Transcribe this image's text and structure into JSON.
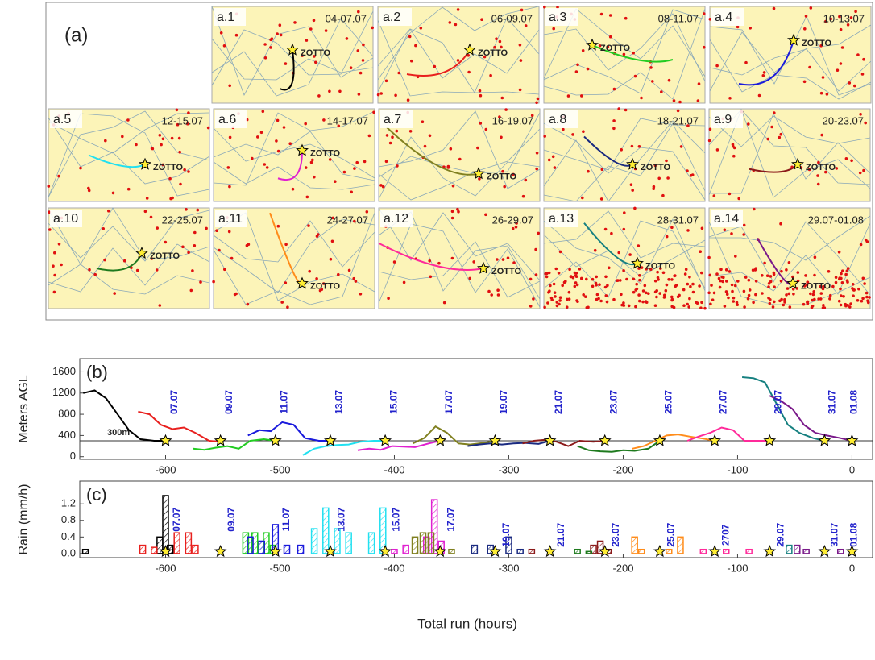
{
  "panel_a": {
    "label": "(a)",
    "station": "ZOTTO",
    "maps": [
      {
        "id": "a.1",
        "dates": "04-07.07"
      },
      {
        "id": "a.2",
        "dates": "06-09.07"
      },
      {
        "id": "a.3",
        "dates": "08-11.07"
      },
      {
        "id": "a.4",
        "dates": "10-13.07"
      },
      {
        "id": "a.5",
        "dates": "12-15.07"
      },
      {
        "id": "a.6",
        "dates": "14-17.07"
      },
      {
        "id": "a.7",
        "dates": "16-19.07"
      },
      {
        "id": "a.8",
        "dates": "18-21.07"
      },
      {
        "id": "a.9",
        "dates": "20-23.07"
      },
      {
        "id": "a.10",
        "dates": "22-25.07"
      },
      {
        "id": "a.11",
        "dates": "24-27.07"
      },
      {
        "id": "a.12",
        "dates": "26-29.07"
      },
      {
        "id": "a.13",
        "dates": "28-31.07"
      },
      {
        "id": "a.14",
        "dates": "29.07-01.08"
      }
    ]
  },
  "x_label": "Total run (hours)",
  "chart_data": [
    {
      "type": "line",
      "panel_label": "(b)",
      "y_label": "Meters AGL",
      "xlim": [
        -675,
        18
      ],
      "ylim": [
        -50,
        1850
      ],
      "xticks": [
        -600,
        -500,
        -400,
        -300,
        -200,
        -100,
        0
      ],
      "yticks": [
        0,
        400,
        800,
        1200,
        1600
      ],
      "reference": {
        "value": 300,
        "label": "300m"
      },
      "stars": {
        "x": [
          -600,
          -552,
          -504,
          -456,
          -408,
          -360,
          -312,
          -264,
          -216,
          -168,
          -120,
          -72,
          -24,
          0
        ],
        "y": 300
      },
      "date_labels": [
        {
          "x": -592,
          "y": 1030,
          "label": "07.07"
        },
        {
          "x": -544,
          "y": 1030,
          "label": "09.07"
        },
        {
          "x": -496,
          "y": 1030,
          "label": "11.07"
        },
        {
          "x": -448,
          "y": 1030,
          "label": "13.07"
        },
        {
          "x": -400,
          "y": 1030,
          "label": "15.07"
        },
        {
          "x": -352,
          "y": 1030,
          "label": "17.07"
        },
        {
          "x": -304,
          "y": 1030,
          "label": "19.07"
        },
        {
          "x": -256,
          "y": 1030,
          "label": "21.07"
        },
        {
          "x": -208,
          "y": 1030,
          "label": "23.07"
        },
        {
          "x": -160,
          "y": 1030,
          "label": "25.07"
        },
        {
          "x": -112,
          "y": 1030,
          "label": "27.07"
        },
        {
          "x": -64,
          "y": 1030,
          "label": "29.07"
        },
        {
          "x": -17,
          "y": 1030,
          "label": "31.07"
        },
        {
          "x": 2,
          "y": 1030,
          "label": "01.08"
        }
      ],
      "series": [
        {
          "color": "#000000",
          "x": [
            -672,
            -662,
            -652,
            -642,
            -632,
            -622,
            -610,
            -600
          ],
          "values": [
            1200,
            1250,
            1100,
            800,
            500,
            330,
            300,
            300
          ]
        },
        {
          "color": "#e8201e",
          "x": [
            -624,
            -614,
            -604,
            -594,
            -584,
            -574,
            -562,
            -552
          ],
          "values": [
            850,
            800,
            600,
            520,
            550,
            450,
            300,
            280
          ]
        },
        {
          "color": "#22cc22",
          "x": [
            -576,
            -566,
            -556,
            -546,
            -536,
            -526,
            -514,
            -504
          ],
          "values": [
            150,
            130,
            170,
            200,
            150,
            300,
            330,
            300
          ]
        },
        {
          "color": "#1a1adc",
          "x": [
            -528,
            -518,
            -508,
            -498,
            -488,
            -478,
            -466,
            -456
          ],
          "values": [
            400,
            500,
            480,
            650,
            600,
            350,
            300,
            300
          ]
        },
        {
          "color": "#22e0f0",
          "x": [
            -480,
            -470,
            -460,
            -450,
            -440,
            -430,
            -418,
            -408
          ],
          "values": [
            30,
            150,
            200,
            220,
            230,
            280,
            300,
            300
          ]
        },
        {
          "color": "#e020d0",
          "x": [
            -432,
            -422,
            -412,
            -402,
            -392,
            -382,
            -370,
            -360
          ],
          "values": [
            120,
            150,
            130,
            200,
            190,
            180,
            250,
            300
          ]
        },
        {
          "color": "#808020",
          "x": [
            -384,
            -374,
            -364,
            -354,
            -344,
            -334,
            -322,
            -312
          ],
          "values": [
            250,
            350,
            570,
            450,
            250,
            230,
            260,
            300
          ]
        },
        {
          "color": "#1a2a80",
          "x": [
            -336,
            -326,
            -316,
            -306,
            -296,
            -286,
            -274,
            -264
          ],
          "values": [
            200,
            230,
            250,
            230,
            250,
            260,
            240,
            300
          ]
        },
        {
          "color": "#8b1a1a",
          "x": [
            -288,
            -278,
            -268,
            -258,
            -248,
            -238,
            -226,
            -216
          ],
          "values": [
            250,
            300,
            320,
            280,
            200,
            300,
            280,
            300
          ]
        },
        {
          "color": "#1e7a1e",
          "x": [
            -240,
            -230,
            -220,
            -210,
            -200,
            -190,
            -178,
            -168
          ],
          "values": [
            200,
            120,
            100,
            90,
            120,
            110,
            150,
            300
          ]
        },
        {
          "color": "#ff8c1a",
          "x": [
            -192,
            -182,
            -172,
            -162,
            -152,
            -142,
            -130,
            -120
          ],
          "values": [
            150,
            200,
            300,
            400,
            420,
            380,
            340,
            300
          ]
        },
        {
          "color": "#ff2a9a",
          "x": [
            -144,
            -134,
            -124,
            -114,
            -104,
            -94,
            -82,
            -72
          ],
          "values": [
            300,
            380,
            450,
            550,
            500,
            300,
            300,
            300
          ]
        },
        {
          "color": "#168080",
          "x": [
            -96,
            -86,
            -76,
            -66,
            -56,
            -46,
            -34,
            -24
          ],
          "values": [
            1500,
            1480,
            1400,
            1000,
            600,
            450,
            350,
            300
          ]
        },
        {
          "color": "#7a1a8a",
          "x": [
            -72,
            -62,
            -52,
            -42,
            -32,
            -22,
            -10,
            0
          ],
          "values": [
            1150,
            1050,
            900,
            600,
            450,
            400,
            350,
            300
          ]
        }
      ]
    },
    {
      "type": "bar",
      "panel_label": "(c)",
      "y_label": "Rain (mm/h)",
      "xlim": [
        -675,
        18
      ],
      "ylim": [
        -0.1,
        1.75
      ],
      "xticks": [
        -600,
        -500,
        -400,
        -300,
        -200,
        -100,
        0
      ],
      "yticks": [
        {
          "value": 0,
          "label": "0.0"
        },
        0.4,
        0.8,
        1.2
      ],
      "stars": {
        "x": [
          -600,
          -552,
          -504,
          -456,
          -408,
          -360,
          -312,
          -264,
          -216,
          -168,
          -120,
          -72,
          -24,
          0
        ],
        "y": 0.05
      },
      "date_labels": [
        {
          "x": -590,
          "y": 0.82,
          "label": "07.07"
        },
        {
          "x": -542,
          "y": 0.82,
          "label": "09.07"
        },
        {
          "x": -494,
          "y": 0.82,
          "label": "11.07"
        },
        {
          "x": -446,
          "y": 0.82,
          "label": "13.07"
        },
        {
          "x": -398,
          "y": 0.82,
          "label": "15.07"
        },
        {
          "x": -350,
          "y": 0.82,
          "label": "17.07"
        },
        {
          "x": -302,
          "y": 0.45,
          "label": "19.07"
        },
        {
          "x": -254,
          "y": 0.45,
          "label": "21.07"
        },
        {
          "x": -206,
          "y": 0.45,
          "label": "23.07"
        },
        {
          "x": -158,
          "y": 0.45,
          "label": "25.07"
        },
        {
          "x": -110,
          "y": 0.45,
          "label": "2707"
        },
        {
          "x": -62,
          "y": 0.45,
          "label": "29.07"
        },
        {
          "x": -15,
          "y": 0.45,
          "label": "31.07"
        },
        {
          "x": 2,
          "y": 0.45,
          "label": "01.08"
        }
      ],
      "series": [
        {
          "color": "#000000",
          "x": [
            -670,
            -605,
            -600,
            -596
          ],
          "values": [
            0.1,
            0.4,
            1.4,
            0.2
          ]
        },
        {
          "color": "#e8201e",
          "x": [
            -620,
            -610,
            -590,
            -580,
            -574
          ],
          "values": [
            0.2,
            0.15,
            0.5,
            0.5,
            0.2
          ]
        },
        {
          "color": "#22cc22",
          "x": [
            -530,
            -522,
            -512,
            -506
          ],
          "values": [
            0.5,
            0.5,
            0.5,
            0.2
          ]
        },
        {
          "color": "#1a1adc",
          "x": [
            -526,
            -516,
            -504,
            -494,
            -482
          ],
          "values": [
            0.4,
            0.3,
            0.7,
            0.2,
            0.2
          ]
        },
        {
          "color": "#22e0f0",
          "x": [
            -470,
            -460,
            -450,
            -440,
            -420,
            -410
          ],
          "values": [
            0.6,
            1.1,
            0.6,
            0.5,
            0.5,
            1.1
          ]
        },
        {
          "color": "#e020d0",
          "x": [
            -400,
            -390,
            -372,
            -365,
            -359
          ],
          "values": [
            0.1,
            0.2,
            0.4,
            1.3,
            0.3
          ]
        },
        {
          "color": "#808020",
          "x": [
            -382,
            -375,
            -368,
            -350
          ],
          "values": [
            0.4,
            0.5,
            0.5,
            0.1
          ]
        },
        {
          "color": "#1a2a80",
          "x": [
            -330,
            -316,
            -300,
            -290
          ],
          "values": [
            0.2,
            0.2,
            0.4,
            0.1
          ]
        },
        {
          "color": "#8b1a1a",
          "x": [
            -280,
            -226,
            -220,
            -213
          ],
          "values": [
            0.1,
            0.2,
            0.3,
            0.1
          ]
        },
        {
          "color": "#1e7a1e",
          "x": [
            -240,
            -230
          ],
          "values": [
            0.1,
            0.05
          ]
        },
        {
          "color": "#ff8c1a",
          "x": [
            -190,
            -184,
            -160,
            -150
          ],
          "values": [
            0.4,
            0.1,
            0.1,
            0.4
          ]
        },
        {
          "color": "#ff2a9a",
          "x": [
            -130,
            -110,
            -90
          ],
          "values": [
            0.1,
            0.1,
            0.1
          ]
        },
        {
          "color": "#168080",
          "x": [
            -55
          ],
          "values": [
            0.2
          ]
        },
        {
          "color": "#7a1a8a",
          "x": [
            -48,
            -40,
            -10
          ],
          "values": [
            0.2,
            0.1,
            0.1
          ]
        }
      ]
    }
  ]
}
